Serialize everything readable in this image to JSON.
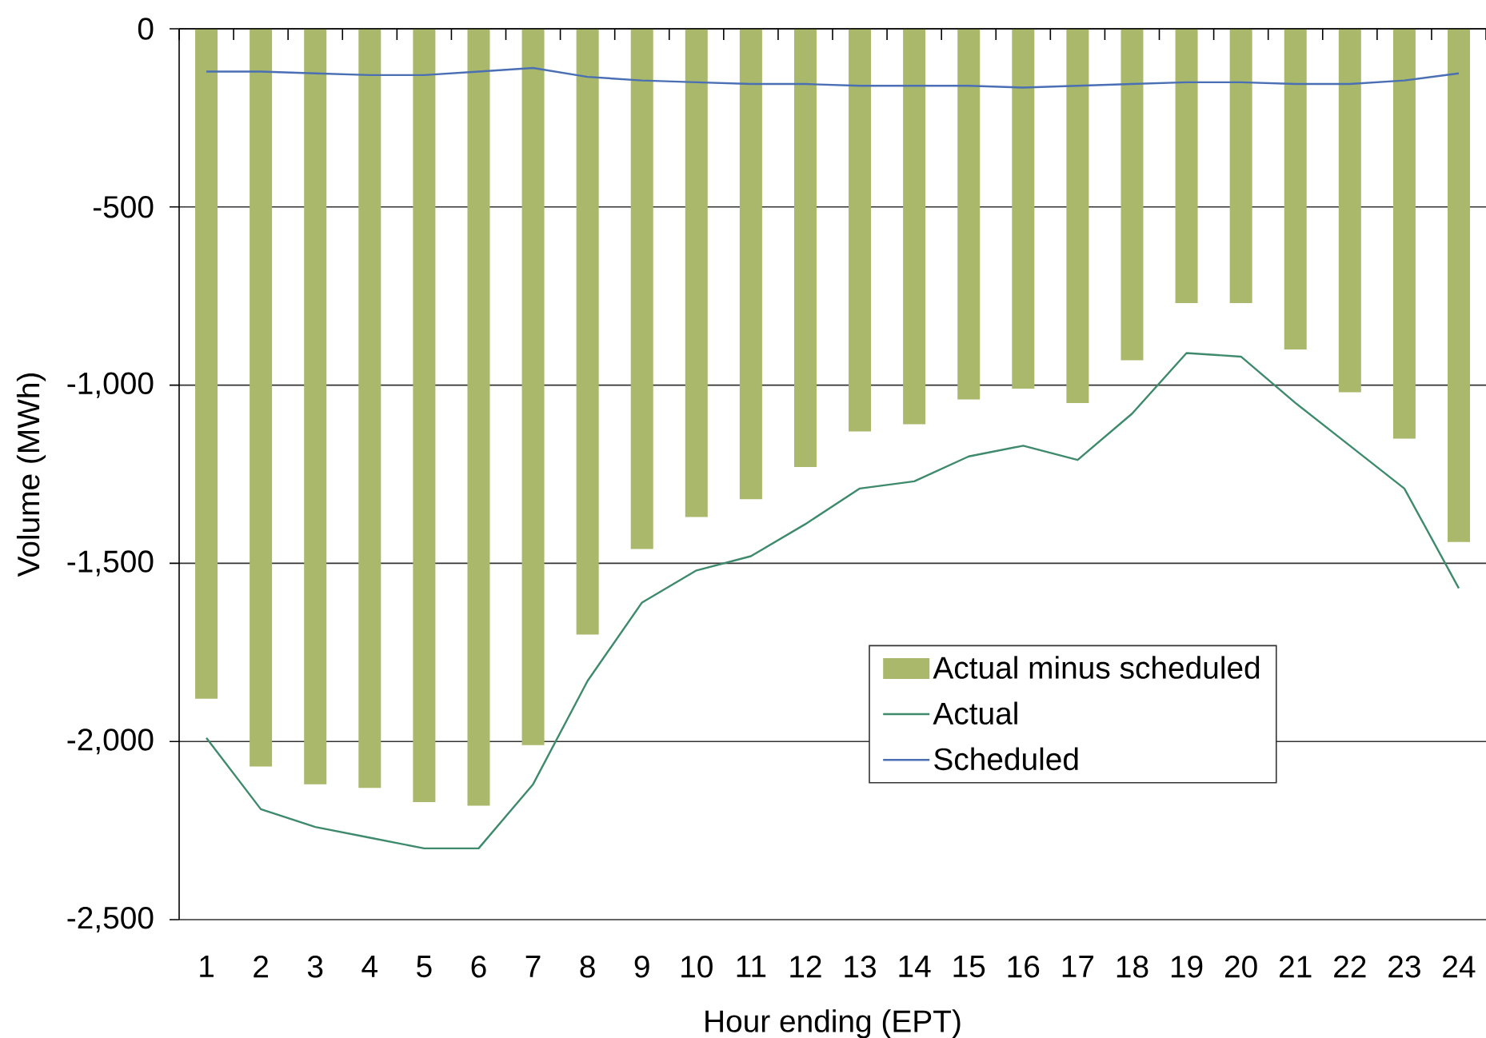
{
  "chart_data": {
    "type": "bar",
    "xlabel": "Hour ending (EPT)",
    "ylabel": "Volume (MWh)",
    "categories": [
      "1",
      "2",
      "3",
      "4",
      "5",
      "6",
      "7",
      "8",
      "9",
      "10",
      "11",
      "12",
      "13",
      "14",
      "15",
      "16",
      "17",
      "18",
      "19",
      "20",
      "21",
      "22",
      "23",
      "24"
    ],
    "series": [
      {
        "name": "Actual minus scheduled",
        "color": "#a9b86b",
        "values": [
          -1880,
          -2070,
          -2120,
          -2130,
          -2170,
          -2180,
          -2010,
          -1700,
          -1460,
          -1370,
          -1320,
          -1230,
          -1130,
          -1110,
          -1040,
          -1010,
          -1050,
          -930,
          -770,
          -770,
          -900,
          -1020,
          -1150,
          -1440
        ]
      },
      {
        "name": "Actual",
        "type": "line",
        "color": "#3e8a6c",
        "values": [
          -1990,
          -2190,
          -2240,
          -2270,
          -2300,
          -2300,
          -2120,
          -1830,
          -1610,
          -1520,
          -1480,
          -1390,
          -1290,
          -1270,
          -1200,
          -1170,
          -1210,
          -1080,
          -910,
          -920,
          -1050,
          -1170,
          -1290,
          -1570
        ]
      },
      {
        "name": "Scheduled",
        "type": "line",
        "color": "#4a6fb4",
        "values": [
          -120,
          -120,
          -125,
          -130,
          -130,
          -120,
          -110,
          -135,
          -145,
          -150,
          -155,
          -155,
          -160,
          -160,
          -160,
          -165,
          -160,
          -155,
          -150,
          -150,
          -155,
          -155,
          -145,
          -125
        ]
      }
    ],
    "ylim": [
      -2500,
      0
    ],
    "yticks": [
      {
        "value": -2500,
        "label": "-2,500"
      },
      {
        "value": -2000,
        "label": "-2,000"
      },
      {
        "value": -1500,
        "label": "-1,500"
      },
      {
        "value": -1000,
        "label": "-1,000"
      },
      -500,
      0
    ],
    "grid": "y",
    "legend": "bottom right"
  }
}
